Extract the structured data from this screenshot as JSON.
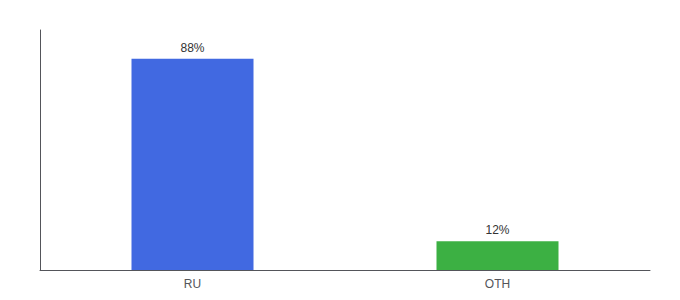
{
  "chart_data": {
    "type": "bar",
    "categories": [
      "RU",
      "OTH"
    ],
    "values": [
      88,
      12
    ],
    "value_labels": [
      "88%",
      "12%"
    ],
    "colors": [
      "#4169E1",
      "#3CB043"
    ],
    "ylim": [
      0,
      100
    ],
    "data_labels": true,
    "tick_labels": "x",
    "grid": false
  }
}
